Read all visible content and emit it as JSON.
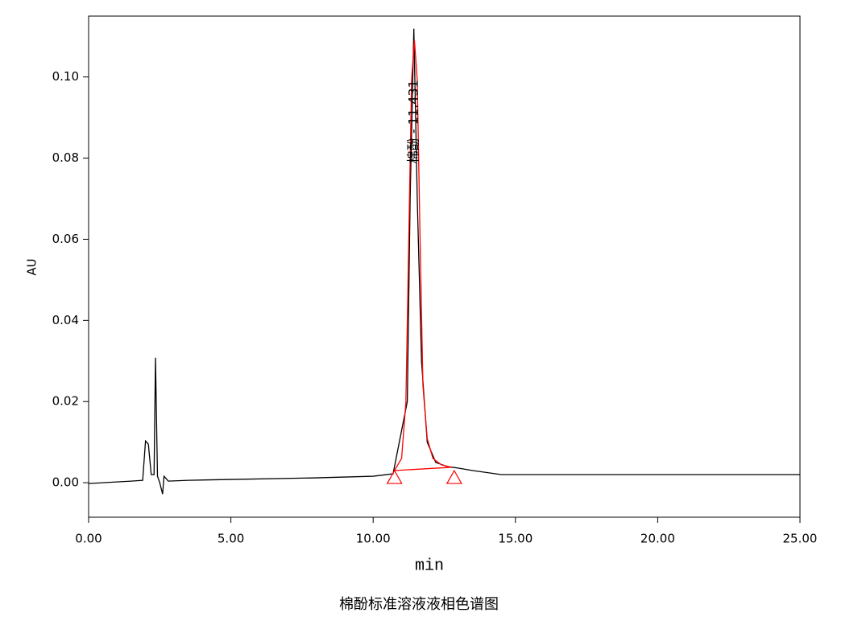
{
  "chart_data": {
    "type": "line",
    "ylabel": "AU",
    "xlabel": "min",
    "caption": "棉酚标准溶液液相色谱图",
    "xlim": [
      0,
      25
    ],
    "ylim": [
      -0.0085,
      0.115
    ],
    "xticks": [
      {
        "value": 0,
        "label": "0.00"
      },
      {
        "value": 5,
        "label": "5.00"
      },
      {
        "value": 10,
        "label": "10.00"
      },
      {
        "value": 15,
        "label": "15.00"
      },
      {
        "value": 20,
        "label": "20.00"
      },
      {
        "value": 25,
        "label": "25.00"
      }
    ],
    "yticks": [
      {
        "value": 0,
        "label": "0.00"
      },
      {
        "value": 0.02,
        "label": "0.02"
      },
      {
        "value": 0.04,
        "label": "0.04"
      },
      {
        "value": 0.06,
        "label": "0.06"
      },
      {
        "value": 0.08,
        "label": "0.08"
      },
      {
        "value": 0.1,
        "label": "0.10"
      }
    ],
    "series": [
      {
        "color": "#000000",
        "x": [
          0,
          1.5,
          1.9,
          2.0,
          2.1,
          2.2,
          2.3,
          2.35,
          2.42,
          2.5,
          2.6,
          2.65,
          2.8,
          3.5,
          5,
          8,
          10,
          10.7,
          11.2,
          11.3,
          11.43,
          11.55,
          11.7,
          11.9,
          12.2,
          12.6,
          13,
          13.5,
          14.5,
          20,
          25
        ],
        "values": [
          -0.0002,
          0.0004,
          0.0006,
          0.0103,
          0.0095,
          0.002,
          0.002,
          0.0308,
          0.0016,
          0.0,
          -0.0028,
          0.0016,
          0.0004,
          0.0006,
          0.0008,
          0.0012,
          0.0016,
          0.0022,
          0.02,
          0.07,
          0.1119,
          0.07,
          0.03,
          0.01,
          0.005,
          0.004,
          0.0036,
          0.003,
          0.002,
          0.002,
          0.002
        ]
      },
      {
        "color": "#ff0000",
        "x": [
          10.75,
          11.0,
          11.15,
          11.25,
          11.35,
          11.45,
          11.55,
          11.65,
          11.75,
          11.9,
          12.1,
          12.4,
          12.75
        ],
        "values": [
          0.003,
          0.006,
          0.0198,
          0.0595,
          0.0992,
          0.1091,
          0.0992,
          0.0595,
          0.0238,
          0.0109,
          0.006,
          0.0044,
          0.0038
        ]
      },
      {
        "color": "#ff0000",
        "x": [
          10.75,
          12.75
        ],
        "values": [
          0.003,
          0.0038
        ]
      }
    ],
    "peak_markers": {
      "color": "#ff0000",
      "x": [
        10.75,
        12.85
      ],
      "values": [
        0.0012,
        0.0012
      ]
    },
    "annotation": {
      "text": "棉酚 - 11.431",
      "x": 11.44,
      "y": 0.089
    }
  }
}
